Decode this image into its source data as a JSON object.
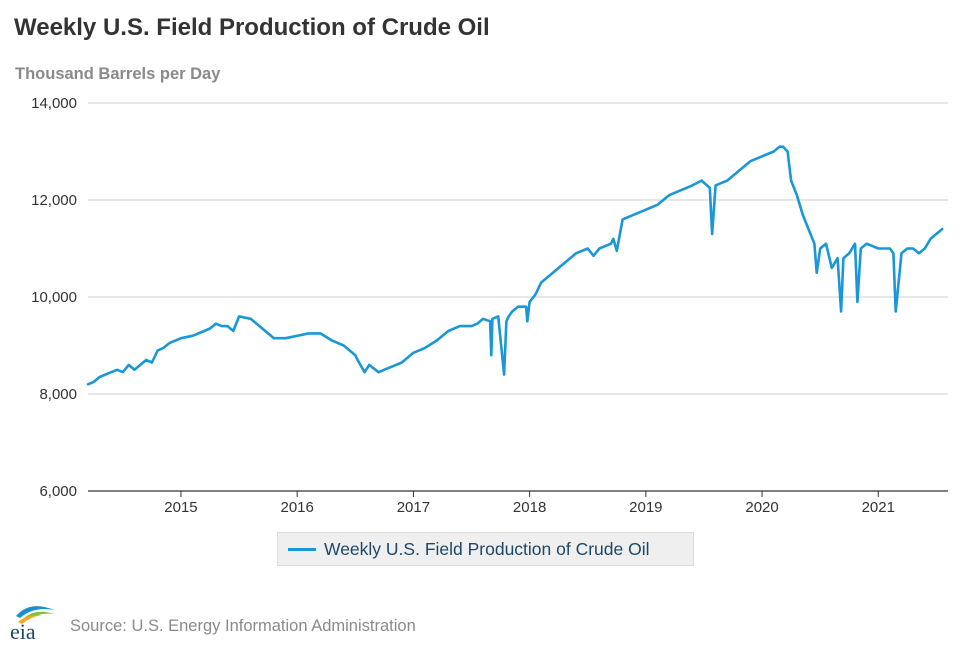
{
  "title": "Weekly U.S. Field Production of Crude Oil",
  "subtitle": "Thousand Barrels per Day",
  "source": "Source: U.S. Energy Information Administration",
  "logo_text": "eia",
  "colors": {
    "series": "#1997d6",
    "grid": "#cfcfcf",
    "axis": "#333333"
  },
  "chart_data": {
    "type": "line",
    "title": "Weekly U.S. Field Production of Crude Oil",
    "ylabel": "Thousand Barrels per Day",
    "xlabel": "",
    "ylim": [
      6000,
      14000
    ],
    "xlim": [
      2014.2,
      2021.6
    ],
    "y_ticks": [
      6000,
      8000,
      10000,
      12000,
      14000
    ],
    "y_tick_labels": [
      "6,000",
      "8,000",
      "10,000",
      "12,000",
      "14,000"
    ],
    "x_ticks": [
      2015,
      2016,
      2017,
      2018,
      2019,
      2020,
      2021
    ],
    "x_tick_labels": [
      "2015",
      "2016",
      "2017",
      "2018",
      "2019",
      "2020",
      "2021"
    ],
    "grid": true,
    "legend_position": "bottom",
    "series": [
      {
        "name": "Weekly U.S. Field Production of Crude Oil",
        "x": [
          2014.2,
          2014.25,
          2014.3,
          2014.4,
          2014.45,
          2014.5,
          2014.55,
          2014.6,
          2014.7,
          2014.75,
          2014.8,
          2014.85,
          2014.9,
          2015.0,
          2015.1,
          2015.2,
          2015.25,
          2015.3,
          2015.35,
          2015.4,
          2015.45,
          2015.5,
          2015.6,
          2015.7,
          2015.8,
          2015.9,
          2016.0,
          2016.1,
          2016.2,
          2016.3,
          2016.4,
          2016.5,
          2016.52,
          2016.58,
          2016.62,
          2016.7,
          2016.8,
          2016.9,
          2017.0,
          2017.1,
          2017.2,
          2017.3,
          2017.4,
          2017.5,
          2017.55,
          2017.6,
          2017.66,
          2017.67,
          2017.68,
          2017.73,
          2017.78,
          2017.8,
          2017.82,
          2017.85,
          2017.9,
          2017.97,
          2017.98,
          2018.0,
          2018.05,
          2018.1,
          2018.2,
          2018.3,
          2018.4,
          2018.5,
          2018.55,
          2018.6,
          2018.7,
          2018.72,
          2018.75,
          2018.8,
          2018.9,
          2019.0,
          2019.1,
          2019.15,
          2019.2,
          2019.3,
          2019.4,
          2019.48,
          2019.55,
          2019.57,
          2019.6,
          2019.7,
          2019.8,
          2019.9,
          2020.0,
          2020.1,
          2020.15,
          2020.18,
          2020.22,
          2020.25,
          2020.3,
          2020.35,
          2020.4,
          2020.45,
          2020.47,
          2020.5,
          2020.55,
          2020.6,
          2020.65,
          2020.68,
          2020.7,
          2020.75,
          2020.8,
          2020.82,
          2020.85,
          2020.9,
          2020.95,
          2021.0,
          2021.05,
          2021.1,
          2021.13,
          2021.15,
          2021.2,
          2021.25,
          2021.3,
          2021.35,
          2021.4,
          2021.45,
          2021.5,
          2021.55
        ],
        "values": [
          8200,
          8250,
          8350,
          8450,
          8500,
          8450,
          8600,
          8500,
          8700,
          8650,
          8900,
          8950,
          9050,
          9150,
          9200,
          9300,
          9350,
          9450,
          9400,
          9400,
          9300,
          9600,
          9550,
          9350,
          9150,
          9150,
          9200,
          9250,
          9250,
          9100,
          9000,
          8800,
          8700,
          8450,
          8600,
          8450,
          8550,
          8650,
          8850,
          8950,
          9100,
          9300,
          9400,
          9400,
          9450,
          9550,
          9500,
          8800,
          9550,
          9600,
          8400,
          9500,
          9600,
          9700,
          9800,
          9800,
          9500,
          9900,
          10050,
          10300,
          10500,
          10700,
          10900,
          11000,
          10850,
          11000,
          11100,
          11200,
          10950,
          11600,
          11700,
          11800,
          11900,
          12000,
          12100,
          12200,
          12300,
          12400,
          12250,
          11300,
          12300,
          12400,
          12600,
          12800,
          12900,
          13000,
          13100,
          13100,
          13000,
          12400,
          12100,
          11700,
          11400,
          11100,
          10500,
          11000,
          11100,
          10600,
          10800,
          9700,
          10800,
          10900,
          11100,
          9900,
          11000,
          11100,
          11050,
          11000,
          11000,
          11000,
          10900,
          9700,
          10900,
          11000,
          11000,
          10900,
          11000,
          11200,
          11300,
          11400
        ]
      }
    ]
  }
}
